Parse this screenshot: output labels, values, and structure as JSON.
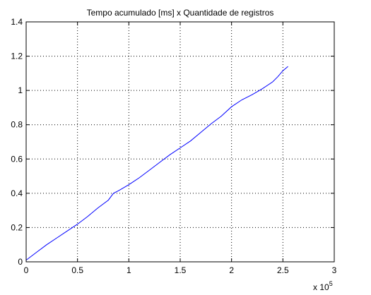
{
  "chart_data": {
    "type": "line",
    "title": "Tempo acumulado [ms] x Quantidade de registros",
    "xlabel": "",
    "ylabel": "",
    "x_multiplier_label": {
      "prefix": "x 10",
      "exponent": "5"
    },
    "xlim": [
      0,
      3
    ],
    "ylim": [
      0,
      1.4
    ],
    "x_ticks": [
      0,
      0.5,
      1,
      1.5,
      2,
      2.5,
      3
    ],
    "x_tick_labels": [
      "0",
      "0.5",
      "1",
      "1.5",
      "2",
      "2.5",
      "3"
    ],
    "y_ticks": [
      0,
      0.2,
      0.4,
      0.6,
      0.8,
      1.0,
      1.2,
      1.4
    ],
    "y_tick_labels": [
      "0",
      "0.2",
      "0.4",
      "0.6",
      "0.8",
      "1",
      "1.2",
      "1.4"
    ],
    "grid": true,
    "series": [
      {
        "color": "#0000ff",
        "x": [
          0,
          0.1,
          0.2,
          0.3,
          0.4,
          0.5,
          0.6,
          0.7,
          0.8,
          0.85,
          0.9,
          1.0,
          1.1,
          1.2,
          1.3,
          1.4,
          1.5,
          1.6,
          1.7,
          1.8,
          1.9,
          2.0,
          2.1,
          2.2,
          2.3,
          2.4,
          2.45,
          2.5,
          2.55
        ],
        "y": [
          0.01,
          0.055,
          0.1,
          0.14,
          0.18,
          0.22,
          0.265,
          0.315,
          0.36,
          0.4,
          0.415,
          0.45,
          0.49,
          0.535,
          0.58,
          0.625,
          0.665,
          0.705,
          0.755,
          0.805,
          0.85,
          0.905,
          0.945,
          0.975,
          1.01,
          1.05,
          1.08,
          1.115,
          1.14
        ]
      }
    ]
  }
}
